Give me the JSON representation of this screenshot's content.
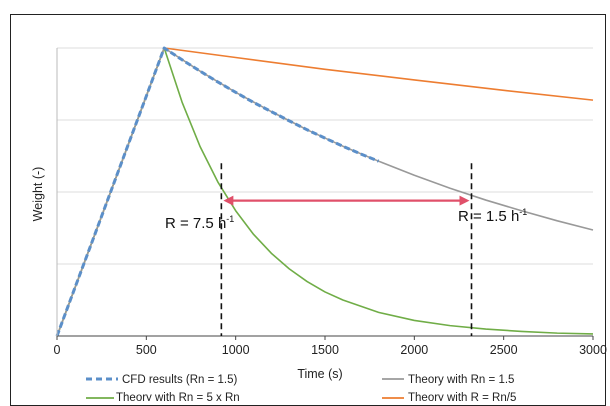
{
  "chart_data": {
    "type": "line",
    "title": "",
    "xlabel": "Time (s)",
    "ylabel": "Weight (-)",
    "xlim": [
      0,
      3000
    ],
    "ylim": [
      0,
      1
    ],
    "x_ticks": [
      0,
      500,
      1000,
      1500,
      2000,
      2500,
      3000
    ],
    "x_tick_labels": [
      "0",
      "500",
      "1000",
      "1500",
      "2000",
      "2500",
      "3000"
    ],
    "grid": "horizontal",
    "legend_position": "bottom",
    "series": [
      {
        "name": "CFD results (Rn = 1.5)",
        "style": "dashed",
        "color": "#5b8fc9",
        "x": [
          0,
          100,
          200,
          300,
          400,
          500,
          600,
          700,
          800,
          900,
          1000,
          1100,
          1200,
          1300,
          1400,
          1500,
          1600,
          1700,
          1800
        ],
        "y": [
          0.0,
          0.167,
          0.333,
          0.5,
          0.667,
          0.833,
          1.0,
          0.959,
          0.92,
          0.882,
          0.846,
          0.811,
          0.779,
          0.747,
          0.716,
          0.687,
          0.659,
          0.632,
          0.607
        ]
      },
      {
        "name": "Theory with Rn = 1.5",
        "style": "solid",
        "color": "#999999",
        "x": [
          0,
          600,
          800,
          1000,
          1200,
          1400,
          1600,
          1800,
          2000,
          2200,
          2400,
          2600,
          2800,
          3000
        ],
        "y": [
          0.0,
          1.0,
          0.92,
          0.846,
          0.779,
          0.716,
          0.659,
          0.607,
          0.558,
          0.513,
          0.472,
          0.435,
          0.4,
          0.368
        ]
      },
      {
        "name": "Theory with Rn = 5 x Rn",
        "style": "solid",
        "color": "#70ad47",
        "x": [
          0,
          600,
          700,
          800,
          900,
          1000,
          1100,
          1200,
          1300,
          1400,
          1500,
          1600,
          1800,
          2000,
          2200,
          2400,
          2600,
          2800,
          3000
        ],
        "y": [
          0.0,
          1.0,
          0.812,
          0.659,
          0.535,
          0.435,
          0.353,
          0.287,
          0.233,
          0.189,
          0.153,
          0.125,
          0.082,
          0.054,
          0.036,
          0.024,
          0.016,
          0.01,
          0.007
        ]
      },
      {
        "name": "Theory with R = Rn/5",
        "style": "solid",
        "color": "#ed7d31",
        "x": [
          0,
          600,
          1000,
          1500,
          2000,
          2500,
          3000
        ],
        "y": [
          0.0,
          1.0,
          0.967,
          0.926,
          0.889,
          0.853,
          0.819
        ]
      }
    ],
    "annotations": {
      "left_label": "R = 7.5 h",
      "left_label_sup": "-1",
      "right_label": "R = 1.5 h",
      "right_label_sup": "-1",
      "left_marker_x": 920,
      "right_marker_x": 2320,
      "arrow_y": 0.47,
      "arrow_color": "#e0506a"
    }
  }
}
